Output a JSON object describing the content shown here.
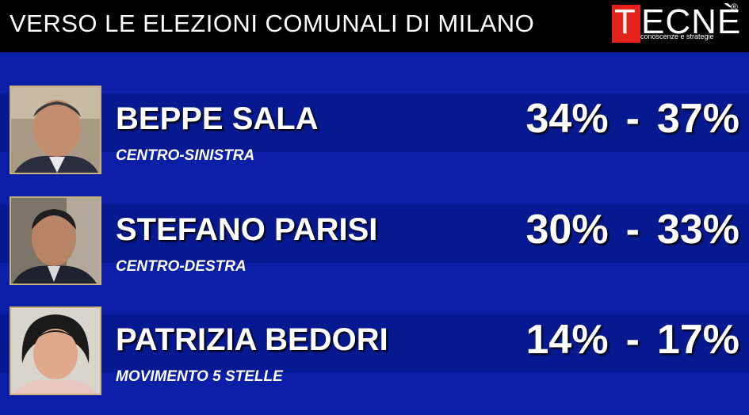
{
  "header": {
    "title": "VERSO LE ELEZIONI COMUNALI DI MILANO",
    "logo": {
      "first_letter": "T",
      "rest": "ECNÈ",
      "registered": "®",
      "tagline": "conoscenze e strategie",
      "brand_color": "#e3231b"
    }
  },
  "colors": {
    "background": "#0a1fa6",
    "band": "#071990",
    "header_bg": "#000000"
  },
  "candidates": [
    {
      "name": "BEPPE SALA",
      "party": "CENTRO-SINISTRA",
      "low": "34%",
      "separator": "-",
      "high": "37%",
      "photo": "candidate-photo"
    },
    {
      "name": "STEFANO PARISI",
      "party": "CENTRO-DESTRA",
      "low": "30%",
      "separator": "-",
      "high": "33%",
      "photo": "candidate-photo"
    },
    {
      "name": "PATRIZIA BEDORI",
      "party": "MOVIMENTO 5 STELLE",
      "low": "14%",
      "separator": "-",
      "high": "17%",
      "photo": "candidate-photo"
    }
  ]
}
